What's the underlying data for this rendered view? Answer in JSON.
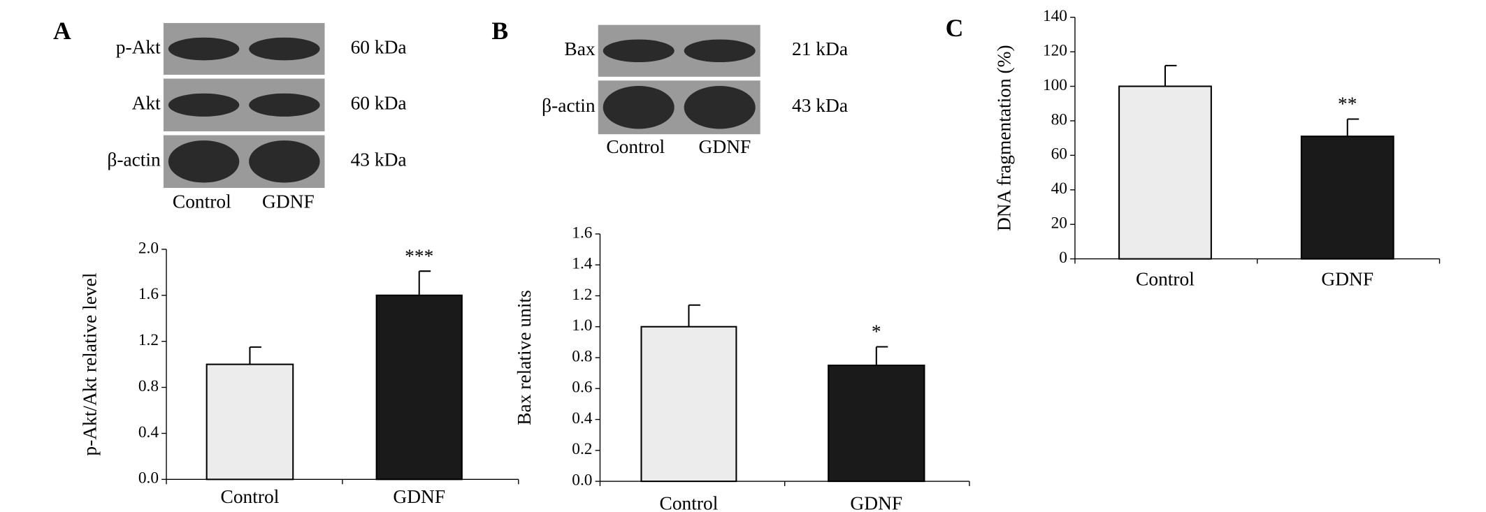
{
  "panel_labels": [
    "A",
    "B",
    "C"
  ],
  "blots": [
    {
      "rows": [
        {
          "name": "p-Akt",
          "size": "60 kDa"
        },
        {
          "name": "Akt",
          "size": "60 kDa"
        },
        {
          "name": "β-actin",
          "size": "43 kDa"
        }
      ],
      "lanes": [
        "Control",
        "GDNF"
      ]
    },
    {
      "rows": [
        {
          "name": "Bax",
          "size": "21 kDa"
        },
        {
          "name": "β-actin",
          "size": "43 kDa"
        }
      ],
      "lanes": [
        "Control",
        "GDNF"
      ]
    }
  ],
  "chart_data": [
    {
      "type": "bar",
      "ylabel": "p-Akt/Akt relative level",
      "categories": [
        "Control",
        "GDNF"
      ],
      "values": [
        1.0,
        1.6
      ],
      "errors": [
        0.15,
        0.21
      ],
      "annotations": [
        null,
        "***"
      ],
      "colors": [
        "#ececec",
        "#1a1a1a"
      ],
      "ylim": [
        0,
        2.0
      ],
      "yticks": [
        {
          "value": 0,
          "label": "0.0"
        },
        {
          "value": 0.4,
          "label": "0.4"
        },
        {
          "value": 0.8,
          "label": "0.8"
        },
        {
          "value": 1.2,
          "label": "1.2"
        },
        {
          "value": 1.6,
          "label": "1.6"
        },
        {
          "value": 2.0,
          "label": "2.0"
        }
      ]
    },
    {
      "type": "bar",
      "ylabel": "Bax relative units",
      "categories": [
        "Control",
        "GDNF"
      ],
      "values": [
        1.0,
        0.75
      ],
      "errors": [
        0.14,
        0.12
      ],
      "annotations": [
        null,
        "*"
      ],
      "colors": [
        "#ececec",
        "#1a1a1a"
      ],
      "ylim": [
        0,
        1.6
      ],
      "yticks": [
        {
          "value": 0,
          "label": "0.0"
        },
        {
          "value": 0.2,
          "label": "0.2"
        },
        {
          "value": 0.4,
          "label": "0.4"
        },
        {
          "value": 0.6,
          "label": "0.6"
        },
        {
          "value": 0.8,
          "label": "0.8"
        },
        {
          "value": 1.0,
          "label": "1.0"
        },
        {
          "value": 1.2,
          "label": "1.2"
        },
        {
          "value": 1.4,
          "label": "1.4"
        },
        {
          "value": 1.6,
          "label": "1.6"
        }
      ]
    },
    {
      "type": "bar",
      "ylabel": "DNA fragmentation (%)",
      "categories": [
        "Control",
        "GDNF"
      ],
      "values": [
        100,
        71
      ],
      "errors": [
        12,
        10
      ],
      "annotations": [
        null,
        "**"
      ],
      "colors": [
        "#ececec",
        "#1a1a1a"
      ],
      "ylim": [
        0,
        140
      ],
      "yticks": [
        0,
        20,
        40,
        60,
        80,
        100,
        120,
        140
      ]
    }
  ]
}
